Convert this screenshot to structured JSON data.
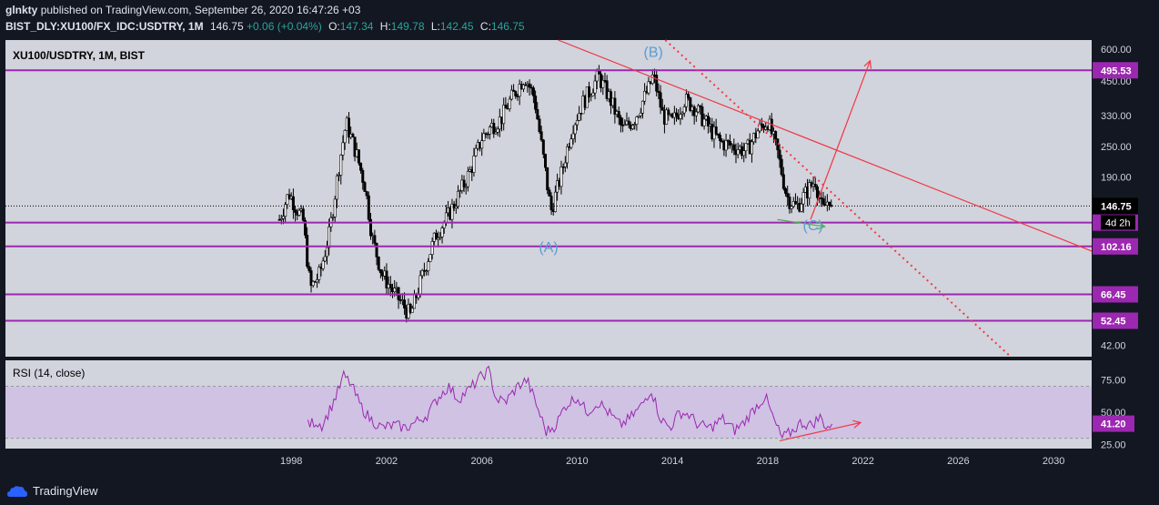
{
  "header": {
    "author": "glnkty",
    "published_text": "published on TradingView.com, September 26, 2020 16:47:26 +03",
    "symbol": "BIST_DLY:XU100/FX_IDC:USDTRY, 1M",
    "price": "146.75",
    "change": "+0.06 (+0.04%)",
    "o_label": "O:",
    "o_val": "147.34",
    "h_label": "H:",
    "h_val": "149.78",
    "l_label": "L:",
    "l_val": "142.45",
    "c_label": "C:",
    "c_val": "146.75"
  },
  "brand": {
    "name": "TradingView"
  },
  "chart_data": {
    "type": "candlestick",
    "title": "XU100/USDTRY, 1M, BIST",
    "x_ticks": [
      "1998",
      "2002",
      "2006",
      "2010",
      "2014",
      "2018",
      "2022",
      "2026",
      "2030"
    ],
    "y_ticks": [
      "600.00",
      "450.00",
      "330.00",
      "250.00",
      "190.00",
      "146.75",
      "126.46",
      "102.16",
      "66.45",
      "52.45",
      "42.00"
    ],
    "y_scale": "log",
    "y_range": [
      38,
      650
    ],
    "x_range": [
      1986,
      2031.6
    ],
    "last_price": {
      "label": "146.75",
      "value": 146.75,
      "countdown": "4d 2h"
    },
    "horizontal_levels": [
      {
        "label": "495.53",
        "value": 495.53
      },
      {
        "label": "126.46",
        "value": 126.46
      },
      {
        "label": "102.16",
        "value": 102.16
      },
      {
        "label": "66.45",
        "value": 66.45
      },
      {
        "label": "52.45",
        "value": 52.45
      }
    ],
    "price_path": [
      [
        1997.5,
        130
      ],
      [
        1997.9,
        165
      ],
      [
        1998.5,
        128
      ],
      [
        1998.8,
        70
      ],
      [
        1999.2,
        80
      ],
      [
        1999.6,
        115
      ],
      [
        2000.0,
        210
      ],
      [
        2000.3,
        310
      ],
      [
        2000.7,
        240
      ],
      [
        2001.1,
        175
      ],
      [
        2001.4,
        110
      ],
      [
        2001.8,
        80
      ],
      [
        2002.2,
        70
      ],
      [
        2002.6,
        62
      ],
      [
        2003.0,
        55
      ],
      [
        2003.3,
        68
      ],
      [
        2003.7,
        90
      ],
      [
        2004.1,
        115
      ],
      [
        2004.5,
        130
      ],
      [
        2005.0,
        160
      ],
      [
        2005.5,
        200
      ],
      [
        2006.0,
        270
      ],
      [
        2006.4,
        300
      ],
      [
        2006.8,
        320
      ],
      [
        2007.2,
        380
      ],
      [
        2007.8,
        470
      ],
      [
        2008.2,
        390
      ],
      [
        2008.6,
        220
      ],
      [
        2008.9,
        140
      ],
      [
        2009.3,
        190
      ],
      [
        2009.8,
        300
      ],
      [
        2010.3,
        380
      ],
      [
        2010.9,
        470
      ],
      [
        2011.4,
        380
      ],
      [
        2011.9,
        290
      ],
      [
        2012.4,
        320
      ],
      [
        2013.0,
        420
      ],
      [
        2013.2,
        475
      ],
      [
        2013.6,
        330
      ],
      [
        2014.0,
        310
      ],
      [
        2014.5,
        380
      ],
      [
        2014.9,
        360
      ],
      [
        2015.5,
        300
      ],
      [
        2016.0,
        260
      ],
      [
        2016.6,
        250
      ],
      [
        2017.1,
        240
      ],
      [
        2017.6,
        290
      ],
      [
        2018.0,
        315
      ],
      [
        2018.4,
        240
      ],
      [
        2018.8,
        160
      ],
      [
        2019.2,
        145
      ],
      [
        2019.6,
        165
      ],
      [
        2020.0,
        185
      ],
      [
        2020.3,
        140
      ],
      [
        2020.6,
        160
      ],
      [
        2020.7,
        147
      ]
    ],
    "annotations": [
      {
        "label": "(A)",
        "x": 2008.8,
        "y": 97
      },
      {
        "label": "(B)",
        "x": 2013.2,
        "y": 560
      },
      {
        "label": "(C)",
        "x": 2019.9,
        "y": 118
      }
    ],
    "trendlines": [
      {
        "style": "solid",
        "color": "#f23645",
        "points": [
          [
            2009.2,
            650
          ],
          [
            2031.6,
            98
          ]
        ]
      },
      {
        "style": "dotted",
        "color": "#f23645",
        "points": [
          [
            2013.7,
            650
          ],
          [
            2028.2,
            38
          ]
        ]
      },
      {
        "style": "solid",
        "color": "#f23645",
        "arrow": true,
        "points": [
          [
            2019.8,
            130
          ],
          [
            2022.3,
            540
          ]
        ]
      },
      {
        "style": "solid",
        "color": "#4caf50",
        "arrow": true,
        "points": [
          [
            2018.4,
            130
          ],
          [
            2020.4,
            122
          ]
        ]
      }
    ],
    "rsi": {
      "label": "RSI (14, close)",
      "last_label": "41.20",
      "last_value": 41.2,
      "y_ticks": [
        "75.00",
        "50.00",
        "25.00"
      ],
      "y_range": [
        22,
        90
      ],
      "band": [
        30,
        70
      ],
      "values": [
        [
          1998.7,
          40
        ],
        [
          1999.0,
          43
        ],
        [
          1999.3,
          40
        ],
        [
          1999.7,
          55
        ],
        [
          2000.0,
          68
        ],
        [
          2000.2,
          78
        ],
        [
          2000.5,
          72
        ],
        [
          2000.9,
          55
        ],
        [
          2001.3,
          45
        ],
        [
          2001.8,
          38
        ],
        [
          2002.3,
          40
        ],
        [
          2002.8,
          38
        ],
        [
          2003.2,
          42
        ],
        [
          2003.7,
          48
        ],
        [
          2004.2,
          62
        ],
        [
          2004.6,
          70
        ],
        [
          2005.0,
          60
        ],
        [
          2005.5,
          68
        ],
        [
          2006.0,
          78
        ],
        [
          2006.3,
          82
        ],
        [
          2006.6,
          60
        ],
        [
          2007.0,
          58
        ],
        [
          2007.5,
          70
        ],
        [
          2007.9,
          75
        ],
        [
          2008.3,
          55
        ],
        [
          2008.7,
          35
        ],
        [
          2009.1,
          40
        ],
        [
          2009.5,
          55
        ],
        [
          2010.0,
          62
        ],
        [
          2010.4,
          50
        ],
        [
          2010.9,
          58
        ],
        [
          2011.3,
          50
        ],
        [
          2011.8,
          40
        ],
        [
          2012.2,
          45
        ],
        [
          2012.7,
          55
        ],
        [
          2013.1,
          68
        ],
        [
          2013.5,
          45
        ],
        [
          2013.9,
          38
        ],
        [
          2014.3,
          50
        ],
        [
          2014.7,
          48
        ],
        [
          2015.1,
          40
        ],
        [
          2015.6,
          38
        ],
        [
          2016.1,
          45
        ],
        [
          2016.6,
          36
        ],
        [
          2017.0,
          42
        ],
        [
          2017.4,
          52
        ],
        [
          2017.9,
          62
        ],
        [
          2018.3,
          42
        ],
        [
          2018.6,
          30
        ],
        [
          2019.0,
          35
        ],
        [
          2019.4,
          42
        ],
        [
          2019.8,
          40
        ],
        [
          2020.2,
          46
        ],
        [
          2020.5,
          38
        ],
        [
          2020.7,
          41
        ]
      ],
      "trendline": {
        "color": "#f23645",
        "arrow": true,
        "points": [
          [
            2018.5,
            28
          ],
          [
            2021.9,
            42
          ]
        ]
      }
    },
    "colors": {
      "background": "#d1d4dc",
      "candles": "#000000",
      "levels": "#9c27b0",
      "level_label_bg": "#9c27b0",
      "rsi_line": "#9c27b0",
      "rsi_band": "#cfc2e3",
      "trend": "#f23645",
      "annotations": "#5b9bd5"
    }
  }
}
